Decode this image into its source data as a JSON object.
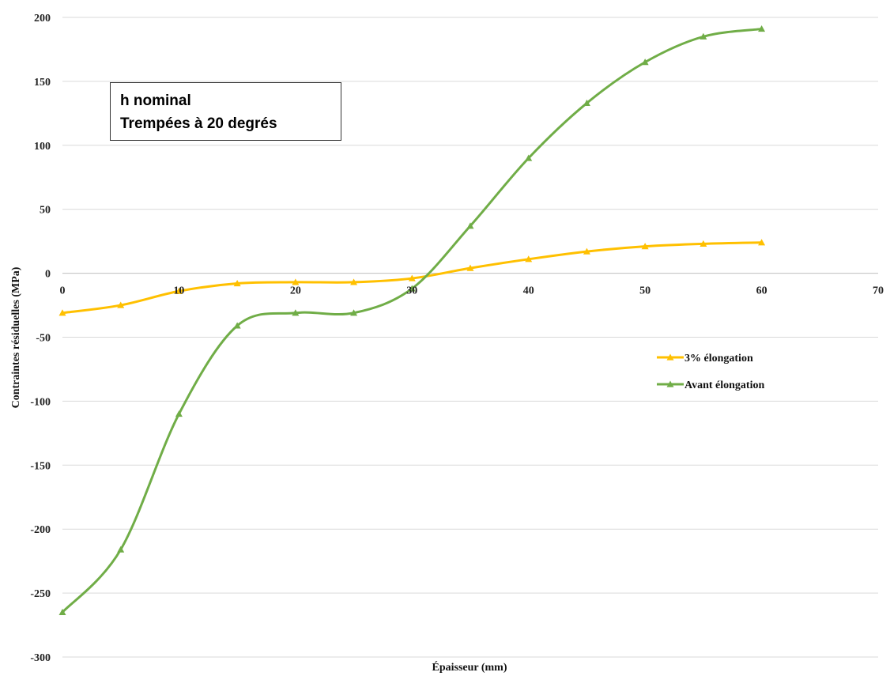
{
  "chart_data": {
    "type": "line",
    "title": "",
    "xlabel": "Épaisseur (mm)",
    "ylabel": "Contraintes résiduelles (MPa)",
    "xlim": [
      0,
      70
    ],
    "ylim": [
      -300,
      200
    ],
    "x_ticks": [
      0,
      10,
      20,
      30,
      40,
      50,
      60,
      70
    ],
    "y_ticks": [
      200,
      150,
      100,
      50,
      0,
      -50,
      -100,
      -150,
      -200,
      -250,
      -300
    ],
    "grid": "horizontal",
    "legend_position": "right",
    "annotation": [
      "h nominal",
      "Trempées à 20 degrés"
    ],
    "series": [
      {
        "name": "3% élongation",
        "color": "#FFC000",
        "x": [
          0,
          5,
          10,
          15,
          20,
          25,
          30,
          35,
          40,
          45,
          50,
          55,
          60
        ],
        "values": [
          -31,
          -25,
          -14,
          -8,
          -7,
          -7,
          -4,
          4,
          11,
          17,
          21,
          23,
          24
        ]
      },
      {
        "name": "Avant élongation",
        "color": "#70AD47",
        "x": [
          0,
          5,
          10,
          15,
          20,
          25,
          30,
          35,
          40,
          45,
          50,
          55,
          60
        ],
        "values": [
          -265,
          -216,
          -110,
          -41,
          -31,
          -31,
          -12,
          37,
          90,
          133,
          165,
          185,
          191
        ]
      }
    ]
  }
}
